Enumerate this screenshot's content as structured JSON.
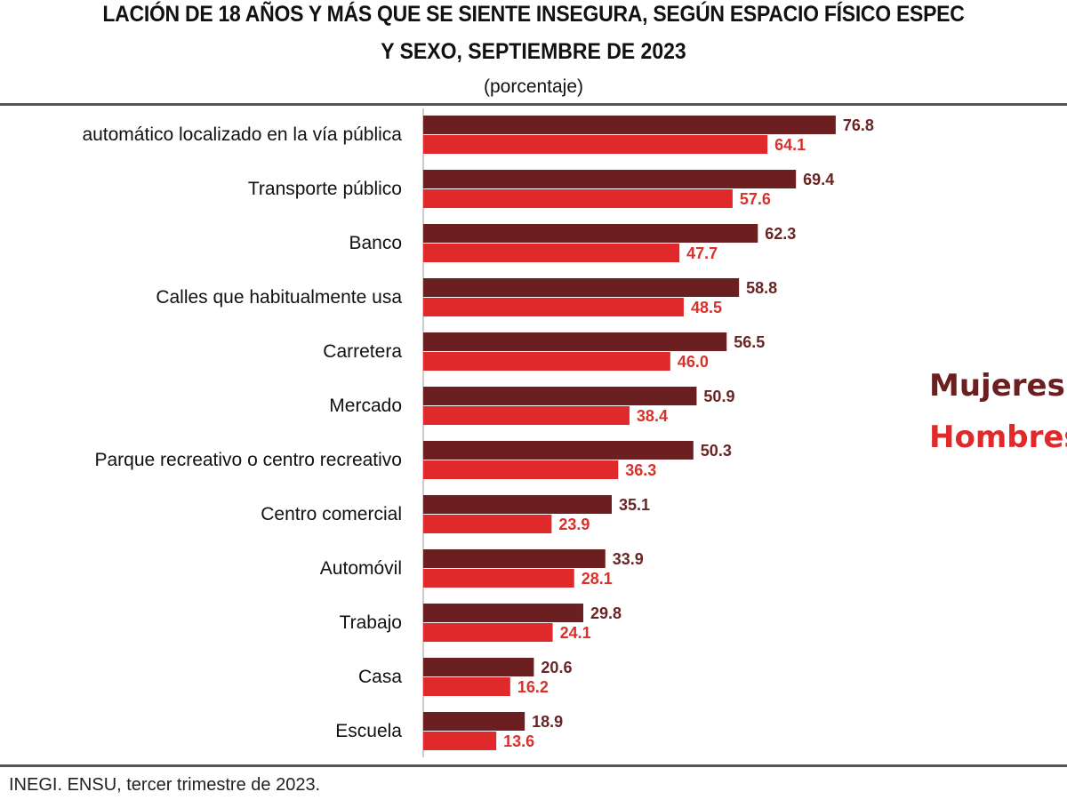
{
  "chart_data": {
    "type": "bar",
    "orientation": "horizontal",
    "title_line1": "LACIÓN DE 18 AÑOS Y MÁS QUE SE SIENTE INSEGURA, SEGÚN ESPACIO FÍSICO ESPEC",
    "title_line2": "Y SEXO, SEPTIEMBRE DE 2023",
    "subtitle": "(porcentaje)",
    "categories": [
      "automático localizado en la vía pública",
      "Transporte público",
      "Banco",
      "Calles que habitualmente usa",
      "Carretera",
      "Mercado",
      "Parque recreativo o centro recreativo",
      "Centro comercial",
      "Automóvil",
      "Trabajo",
      "Casa",
      "Escuela"
    ],
    "series": [
      {
        "name": "Mujeres",
        "color": "#6b1f20",
        "values": [
          76.8,
          69.4,
          62.3,
          58.8,
          56.5,
          50.9,
          50.3,
          35.1,
          33.9,
          29.8,
          20.6,
          18.9
        ]
      },
      {
        "name": "Hombres",
        "color": "#e0292b",
        "values": [
          64.1,
          57.6,
          47.7,
          48.5,
          46.0,
          38.4,
          36.3,
          23.9,
          28.1,
          24.1,
          16.2,
          13.6
        ]
      }
    ],
    "xlim": [
      0,
      80
    ],
    "grid": false,
    "legend_placement": "right",
    "source": "INEGI. ENSU, tercer trimestre de 2023."
  }
}
